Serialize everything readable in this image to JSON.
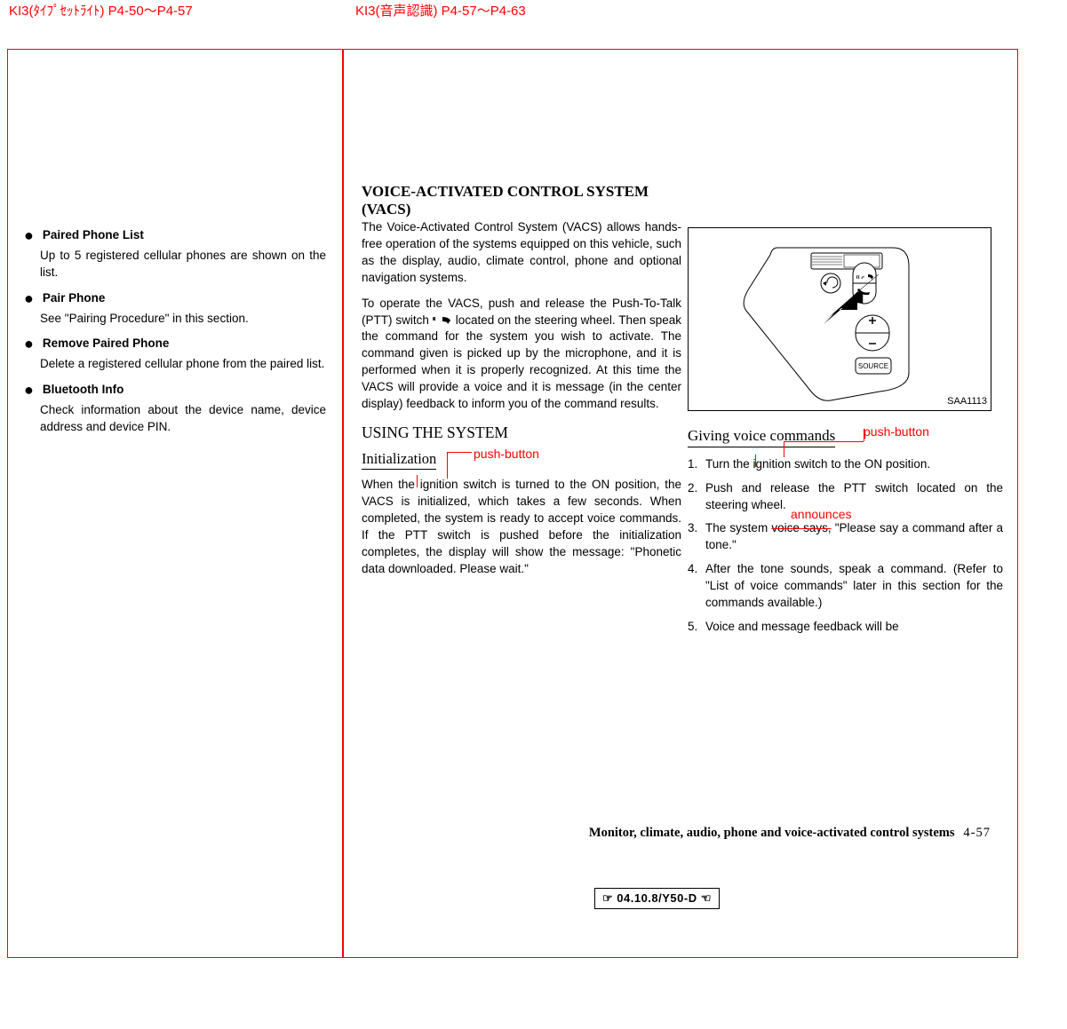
{
  "headers": {
    "left": "KI3(ﾀｲﾌﾟｾｯﾄﾗｲﾄ) P4-50～P4-57",
    "right": "KI3(音声認識) P4-57～P4-63"
  },
  "left_col": {
    "items": [
      {
        "label": "Paired Phone List",
        "body": "Up to 5 registered cellular phones are shown on the list."
      },
      {
        "label": "Pair Phone",
        "body": "See \"Pairing Procedure\" in this section."
      },
      {
        "label": "Remove Paired Phone",
        "body": "Delete a registered cellular phone from the paired list."
      },
      {
        "label": "Bluetooth Info",
        "body": "Check information about the device name, device address and device PIN."
      }
    ]
  },
  "mid_col": {
    "heading": "VOICE-ACTIVATED CONTROL SYSTEM (VACS)",
    "p1": "The Voice-Activated Control System (VACS) allows hands-free operation of the systems equipped on this vehicle, such as the display, audio, climate control, phone and optional navigation systems.",
    "p2a": "To operate the VACS, push and release the Push-To-Talk (PTT) switch ",
    "p2b": " located on the steering wheel. Then speak the command for the system you wish to activate. The command given is picked up by the microphone, and it is performed when it is properly recognized. At this time the VACS will provide a voice and it is message (in the center display) feedback to inform you of the command results.",
    "sub1": "USING THE SYSTEM",
    "sub2": "Initialization",
    "anno_init": "push-button",
    "p3a": "When the ",
    "p3b": "ignition switch is turned to the ON position, the VACS is initialized, which takes a few seconds. When completed, the system is ready to accept voice commands. If the PTT switch is pushed before the initialization completes, the display will show the message: \"Phonetic data downloaded. Please wait.\""
  },
  "right_col": {
    "img_label": "SAA1113",
    "sub2": "Giving voice commands",
    "anno_gvc": "push-button",
    "anno_voice": "announces",
    "steps": [
      {
        "n": "1.",
        "a": "Turn the ",
        "b": "ignition switch to the ON position."
      },
      {
        "n": "2.",
        "t": "Push and release the PTT switch located on the steering wheel."
      },
      {
        "n": "3.",
        "a": "The system ",
        "strike": "voice says,",
        "b": " \"Please say a command after a tone.\""
      },
      {
        "n": "4.",
        "t": "After the tone sounds, speak a command. (Refer to \"List of voice commands\" later in this section for the commands available.)"
      },
      {
        "n": "5.",
        "t": "Voice and message feedback will be"
      }
    ]
  },
  "footer": {
    "title": "Monitor, climate, audio, phone and voice-activated control systems",
    "page": "4-57",
    "stamp": "☞ 04.10.8/Y50-D ☜"
  }
}
